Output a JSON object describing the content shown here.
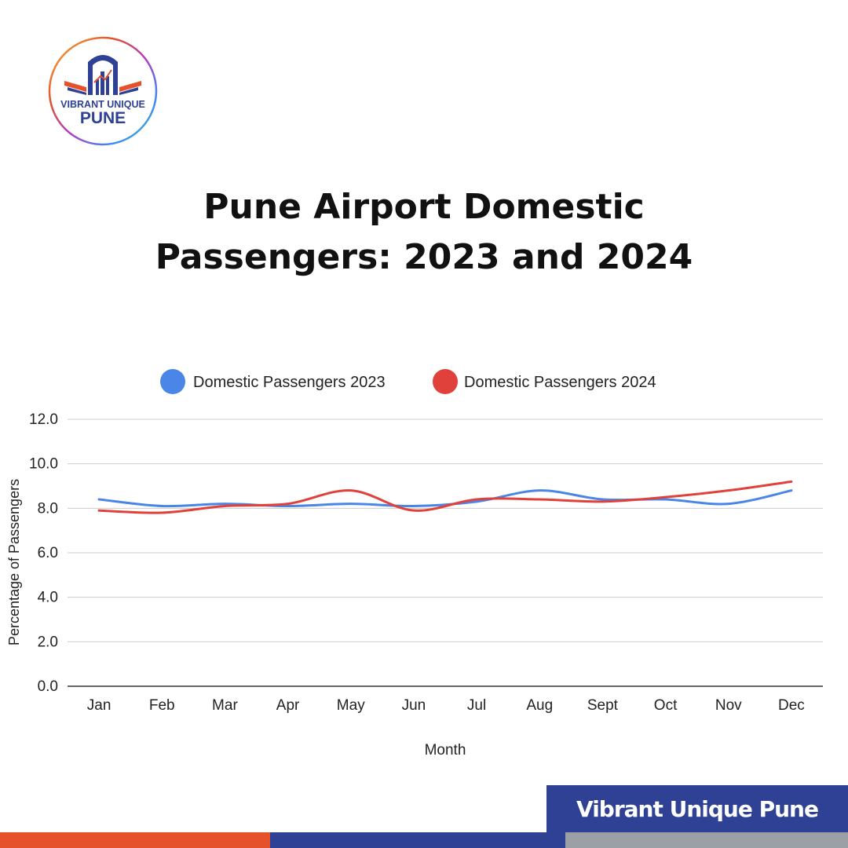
{
  "title": {
    "line1": "Pune Airport Domestic",
    "line2": "Passengers: 2023 and 2024"
  },
  "logo": {
    "line1": "VIBRANT UNIQUE",
    "line2": "PUNE",
    "ring_colors": [
      "#f6b73c",
      "#e5512a",
      "#b03cc8",
      "#3c8df6",
      "#3cc8a0"
    ]
  },
  "banner": {
    "text": "Vibrant Unique Pune"
  },
  "colors": {
    "series_2023": "#4a86e8",
    "series_2024": "#e0413a",
    "grid": "#cccccc",
    "axis": "#333333",
    "brand_orange": "#e5512a",
    "brand_blue": "#2e4194",
    "brand_gray": "#9aa0a6"
  },
  "chart_data": {
    "type": "line",
    "title": "Pune Airport Domestic Passengers: 2023 and 2024",
    "xlabel": "Month",
    "ylabel": "Percentage of Passengers",
    "ylim": [
      0,
      12
    ],
    "yticks": [
      "0.0",
      "2.0",
      "4.0",
      "6.0",
      "8.0",
      "10.0",
      "12.0"
    ],
    "grid": true,
    "legend": "top-center",
    "categories": [
      "Jan",
      "Feb",
      "Mar",
      "Apr",
      "May",
      "Jun",
      "Jul",
      "Aug",
      "Sept",
      "Oct",
      "Nov",
      "Dec"
    ],
    "series": [
      {
        "name": "Domestic Passengers 2023",
        "color": "#4a86e8",
        "values": [
          8.4,
          8.1,
          8.2,
          8.1,
          8.2,
          8.1,
          8.3,
          8.8,
          8.4,
          8.4,
          8.2,
          8.8
        ]
      },
      {
        "name": "Domestic Passengers 2024",
        "color": "#e0413a",
        "values": [
          7.9,
          7.8,
          8.1,
          8.2,
          8.8,
          7.9,
          8.4,
          8.4,
          8.3,
          8.5,
          8.8,
          9.2
        ]
      }
    ]
  }
}
